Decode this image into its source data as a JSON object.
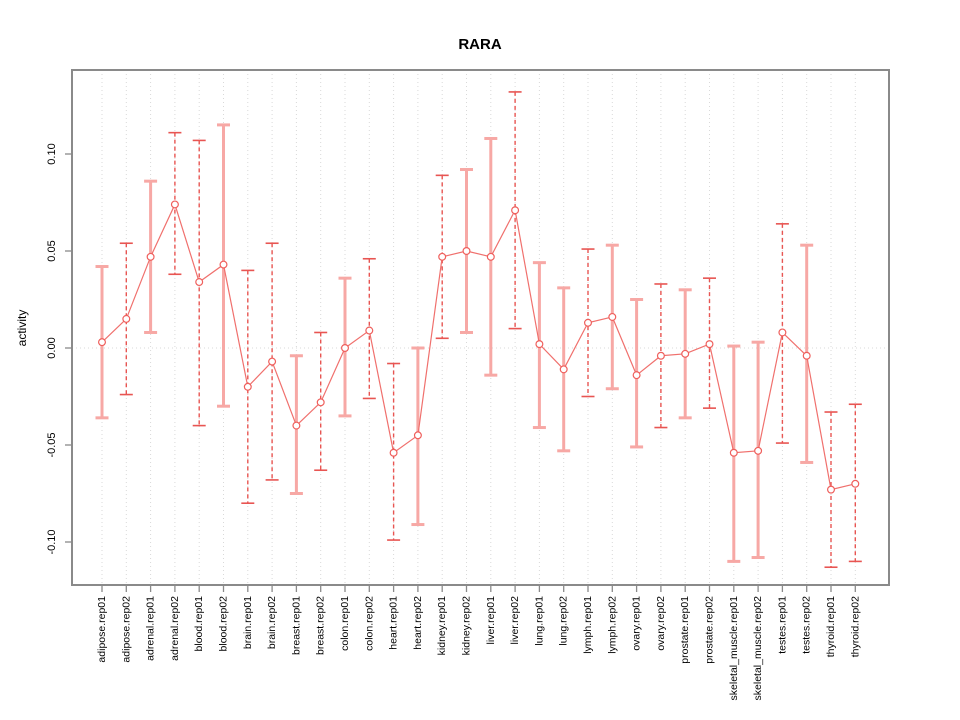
{
  "chart_data": {
    "type": "line",
    "title": "RARA",
    "xlabel": "",
    "ylabel": "activity",
    "legend": "none",
    "grid": "vertical-dotted",
    "zero_line": 0,
    "ylim": [
      -0.122,
      0.143
    ],
    "yticks": [
      0.1,
      0.05,
      0.0,
      -0.05,
      -0.1
    ],
    "ytick_labels": [
      "0.10",
      "0.05",
      "0.00",
      "-0.05",
      "-0.10"
    ],
    "categories": [
      "adipose.rep01",
      "adipose.rep02",
      "adrenal.rep01",
      "adrenal.rep02",
      "blood.rep01",
      "blood.rep02",
      "brain.rep01",
      "brain.rep02",
      "breast.rep01",
      "breast.rep02",
      "colon.rep01",
      "colon.rep02",
      "heart.rep01",
      "heart.rep02",
      "kidney.rep01",
      "kidney.rep02",
      "liver.rep01",
      "liver.rep02",
      "lung.rep01",
      "lung.rep02",
      "lymph.rep01",
      "lymph.rep02",
      "ovary.rep01",
      "ovary.rep02",
      "prostate.rep01",
      "prostate.rep02",
      "skeletal_muscle.rep01",
      "skeletal_muscle.rep02",
      "testes.rep01",
      "testes.rep02",
      "thyroid.rep01",
      "thyroid.rep02"
    ],
    "series": [
      {
        "name": "activity",
        "values": [
          0.003,
          0.015,
          0.047,
          0.074,
          0.034,
          0.043,
          -0.02,
          -0.007,
          -0.04,
          -0.028,
          0.0,
          0.009,
          -0.054,
          -0.045,
          0.047,
          0.05,
          0.047,
          0.071,
          0.002,
          -0.011,
          0.013,
          0.016,
          -0.014,
          -0.004,
          -0.003,
          0.002,
          -0.054,
          -0.053,
          0.008,
          -0.004,
          -0.073,
          -0.07
        ],
        "ci_low": [
          -0.036,
          -0.024,
          0.008,
          0.038,
          -0.04,
          -0.03,
          -0.08,
          -0.068,
          -0.075,
          -0.063,
          -0.035,
          -0.026,
          -0.099,
          -0.091,
          0.005,
          0.008,
          -0.014,
          0.01,
          -0.041,
          -0.053,
          -0.025,
          -0.021,
          -0.051,
          -0.041,
          -0.036,
          -0.031,
          -0.11,
          -0.108,
          -0.049,
          -0.059,
          -0.113,
          -0.11
        ],
        "ci_high": [
          0.042,
          0.054,
          0.086,
          0.111,
          0.107,
          0.115,
          0.04,
          0.054,
          -0.004,
          0.008,
          0.036,
          0.046,
          -0.008,
          0.0,
          0.089,
          0.092,
          0.108,
          0.132,
          0.044,
          0.031,
          0.051,
          0.053,
          0.025,
          0.033,
          0.03,
          0.036,
          0.001,
          0.003,
          0.064,
          0.053,
          -0.033,
          -0.029
        ],
        "bar_styles": [
          "solid",
          "dashed",
          "solid",
          "dashed",
          "dashed",
          "solid",
          "dashed",
          "dashed",
          "solid",
          "dashed",
          "solid",
          "dashed",
          "dashed",
          "solid",
          "dashed",
          "solid",
          "solid",
          "dashed",
          "solid",
          "solid",
          "dashed",
          "solid",
          "solid",
          "dashed",
          "solid",
          "dashed",
          "solid",
          "solid",
          "dashed",
          "solid",
          "dashed",
          "dashed"
        ]
      }
    ],
    "colors": {
      "point": "#ef5f5c",
      "line": "#f0706d",
      "solid_bar": "#f7a8a5",
      "dashed_bar": "#e85552",
      "grid": "#d9d9d9",
      "frame": "#8a8a8a",
      "tick": "#8a8a8a",
      "text": "#000000"
    }
  }
}
